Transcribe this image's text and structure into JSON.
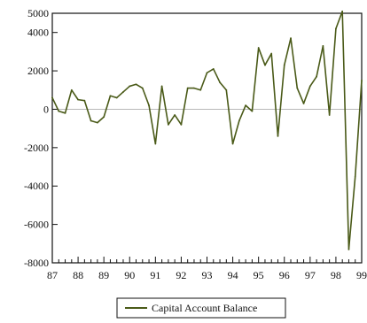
{
  "colors": {
    "background": "#ffffff",
    "axis": "#111111",
    "series": "#4a5a18",
    "zero_line": "#b8b8b8"
  },
  "chart_data": {
    "type": "line",
    "title": "",
    "xlabel": "",
    "ylabel": "",
    "ylim": [
      -8000,
      5000
    ],
    "xlim": [
      1987.0,
      1999.0
    ],
    "grid": false,
    "legend_placement": "bottom-center",
    "yticks": [
      {
        "value": 5000,
        "label": "5000"
      },
      {
        "value": 4000,
        "label": "4000"
      },
      {
        "value": 2000,
        "label": "2000"
      },
      {
        "value": 0,
        "label": "0"
      },
      {
        "value": -2000,
        "label": "-2000"
      },
      {
        "value": -4000,
        "label": "-4000"
      },
      {
        "value": -6000,
        "label": "-6000"
      },
      {
        "value": -8000,
        "label": "-8000"
      }
    ],
    "xticks": [
      {
        "value": 1987.0,
        "label": "87"
      },
      {
        "value": 1988.0,
        "label": "88"
      },
      {
        "value": 1989.0,
        "label": "89"
      },
      {
        "value": 1990.0,
        "label": "90"
      },
      {
        "value": 1991.0,
        "label": "91"
      },
      {
        "value": 1992.0,
        "label": "92"
      },
      {
        "value": 1993.0,
        "label": "93"
      },
      {
        "value": 1994.0,
        "label": "94"
      },
      {
        "value": 1995.0,
        "label": "95"
      },
      {
        "value": 1996.0,
        "label": "96"
      },
      {
        "value": 1997.0,
        "label": "97"
      },
      {
        "value": 1998.0,
        "label": "98"
      },
      {
        "value": 1999.0,
        "label": "99"
      }
    ],
    "series": [
      {
        "name": "Capital Account Balance",
        "points": [
          [
            1987.0,
            600
          ],
          [
            1987.25,
            -100
          ],
          [
            1987.5,
            -200
          ],
          [
            1987.75,
            1000
          ],
          [
            1988.0,
            500
          ],
          [
            1988.25,
            450
          ],
          [
            1988.5,
            -600
          ],
          [
            1988.75,
            -700
          ],
          [
            1989.0,
            -400
          ],
          [
            1989.25,
            700
          ],
          [
            1989.5,
            600
          ],
          [
            1989.75,
            900
          ],
          [
            1990.0,
            1200
          ],
          [
            1990.25,
            1300
          ],
          [
            1990.5,
            1100
          ],
          [
            1990.75,
            200
          ],
          [
            1991.0,
            -1800
          ],
          [
            1991.25,
            1200
          ],
          [
            1991.5,
            -800
          ],
          [
            1991.75,
            -300
          ],
          [
            1992.0,
            -800
          ],
          [
            1992.25,
            1100
          ],
          [
            1992.5,
            1100
          ],
          [
            1992.75,
            1000
          ],
          [
            1993.0,
            1900
          ],
          [
            1993.25,
            2100
          ],
          [
            1993.5,
            1400
          ],
          [
            1993.75,
            1000
          ],
          [
            1994.0,
            -1800
          ],
          [
            1994.25,
            -600
          ],
          [
            1994.5,
            200
          ],
          [
            1994.75,
            -100
          ],
          [
            1995.0,
            3200
          ],
          [
            1995.25,
            2300
          ],
          [
            1995.5,
            2900
          ],
          [
            1995.75,
            -1400
          ],
          [
            1996.0,
            2300
          ],
          [
            1996.25,
            3700
          ],
          [
            1996.5,
            1100
          ],
          [
            1996.75,
            300
          ],
          [
            1997.0,
            1200
          ],
          [
            1997.25,
            1700
          ],
          [
            1997.5,
            3300
          ],
          [
            1997.75,
            -300
          ],
          [
            1998.0,
            4200
          ],
          [
            1998.25,
            5100
          ],
          [
            1998.5,
            -7300
          ],
          [
            1998.75,
            -3500
          ],
          [
            1999.0,
            1500
          ]
        ]
      }
    ]
  },
  "legend": {
    "label": "Capital Account Balance"
  }
}
